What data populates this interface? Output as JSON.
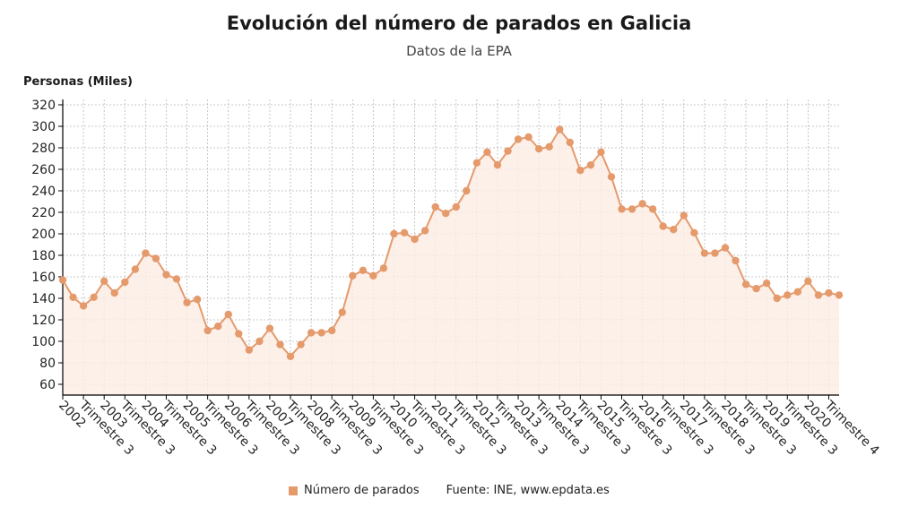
{
  "header": {
    "title": "Evolución del número de parados en Galicia",
    "subtitle": "Datos de la EPA"
  },
  "legend": {
    "series_label": "Número de parados",
    "source": "Fuente: INE, www.epdata.es"
  },
  "colors": {
    "series": "#e59a6c",
    "fill": "#fdece4",
    "grid": "#b8b8b8"
  },
  "chart_data": {
    "type": "line",
    "title": "Evolución del número de parados en Galicia",
    "subtitle": "Datos de la EPA",
    "ylabel": "Personas (Miles)",
    "xlabel": "",
    "ylim": [
      50,
      325
    ],
    "yticks": [
      60,
      80,
      100,
      120,
      140,
      160,
      180,
      200,
      220,
      240,
      260,
      280,
      300,
      320
    ],
    "grid": true,
    "legend_position": "bottom",
    "x_tick_labels": [
      "2002",
      "Trimestre 3",
      "2003",
      "Trimestre 3",
      "2004",
      "Trimestre 3",
      "2005",
      "Trimestre 3",
      "2006",
      "Trimestre 3",
      "2007",
      "Trimestre 3",
      "2008",
      "Trimestre 3",
      "2009",
      "Trimestre 3",
      "2010",
      "Trimestre 3",
      "2011",
      "Trimestre 3",
      "2012",
      "Trimestre 3",
      "2013",
      "Trimestre 3",
      "2014",
      "Trimestre 3",
      "2015",
      "Trimestre 3",
      "2016",
      "Trimestre 3",
      "2017",
      "Trimestre 3",
      "2018",
      "Trimestre 3",
      "2019",
      "Trimestre 3",
      "2020",
      "Trimestre 4"
    ],
    "series": [
      {
        "name": "Número de parados",
        "values": [
          157,
          141,
          133,
          141,
          156,
          145,
          155,
          167,
          182,
          177,
          162,
          158,
          136,
          139,
          110,
          114,
          125,
          107,
          92,
          100,
          112,
          97,
          86,
          97,
          108,
          108,
          110,
          127,
          161,
          166,
          161,
          168,
          200,
          201,
          195,
          203,
          225,
          219,
          225,
          240,
          266,
          276,
          264,
          277,
          288,
          290,
          279,
          281,
          297,
          285,
          259,
          264,
          276,
          253,
          223,
          223,
          228,
          223,
          207,
          204,
          217,
          201,
          182,
          182,
          187,
          175,
          153,
          149,
          154,
          140,
          143,
          146,
          156,
          143,
          145,
          143
        ]
      }
    ]
  }
}
